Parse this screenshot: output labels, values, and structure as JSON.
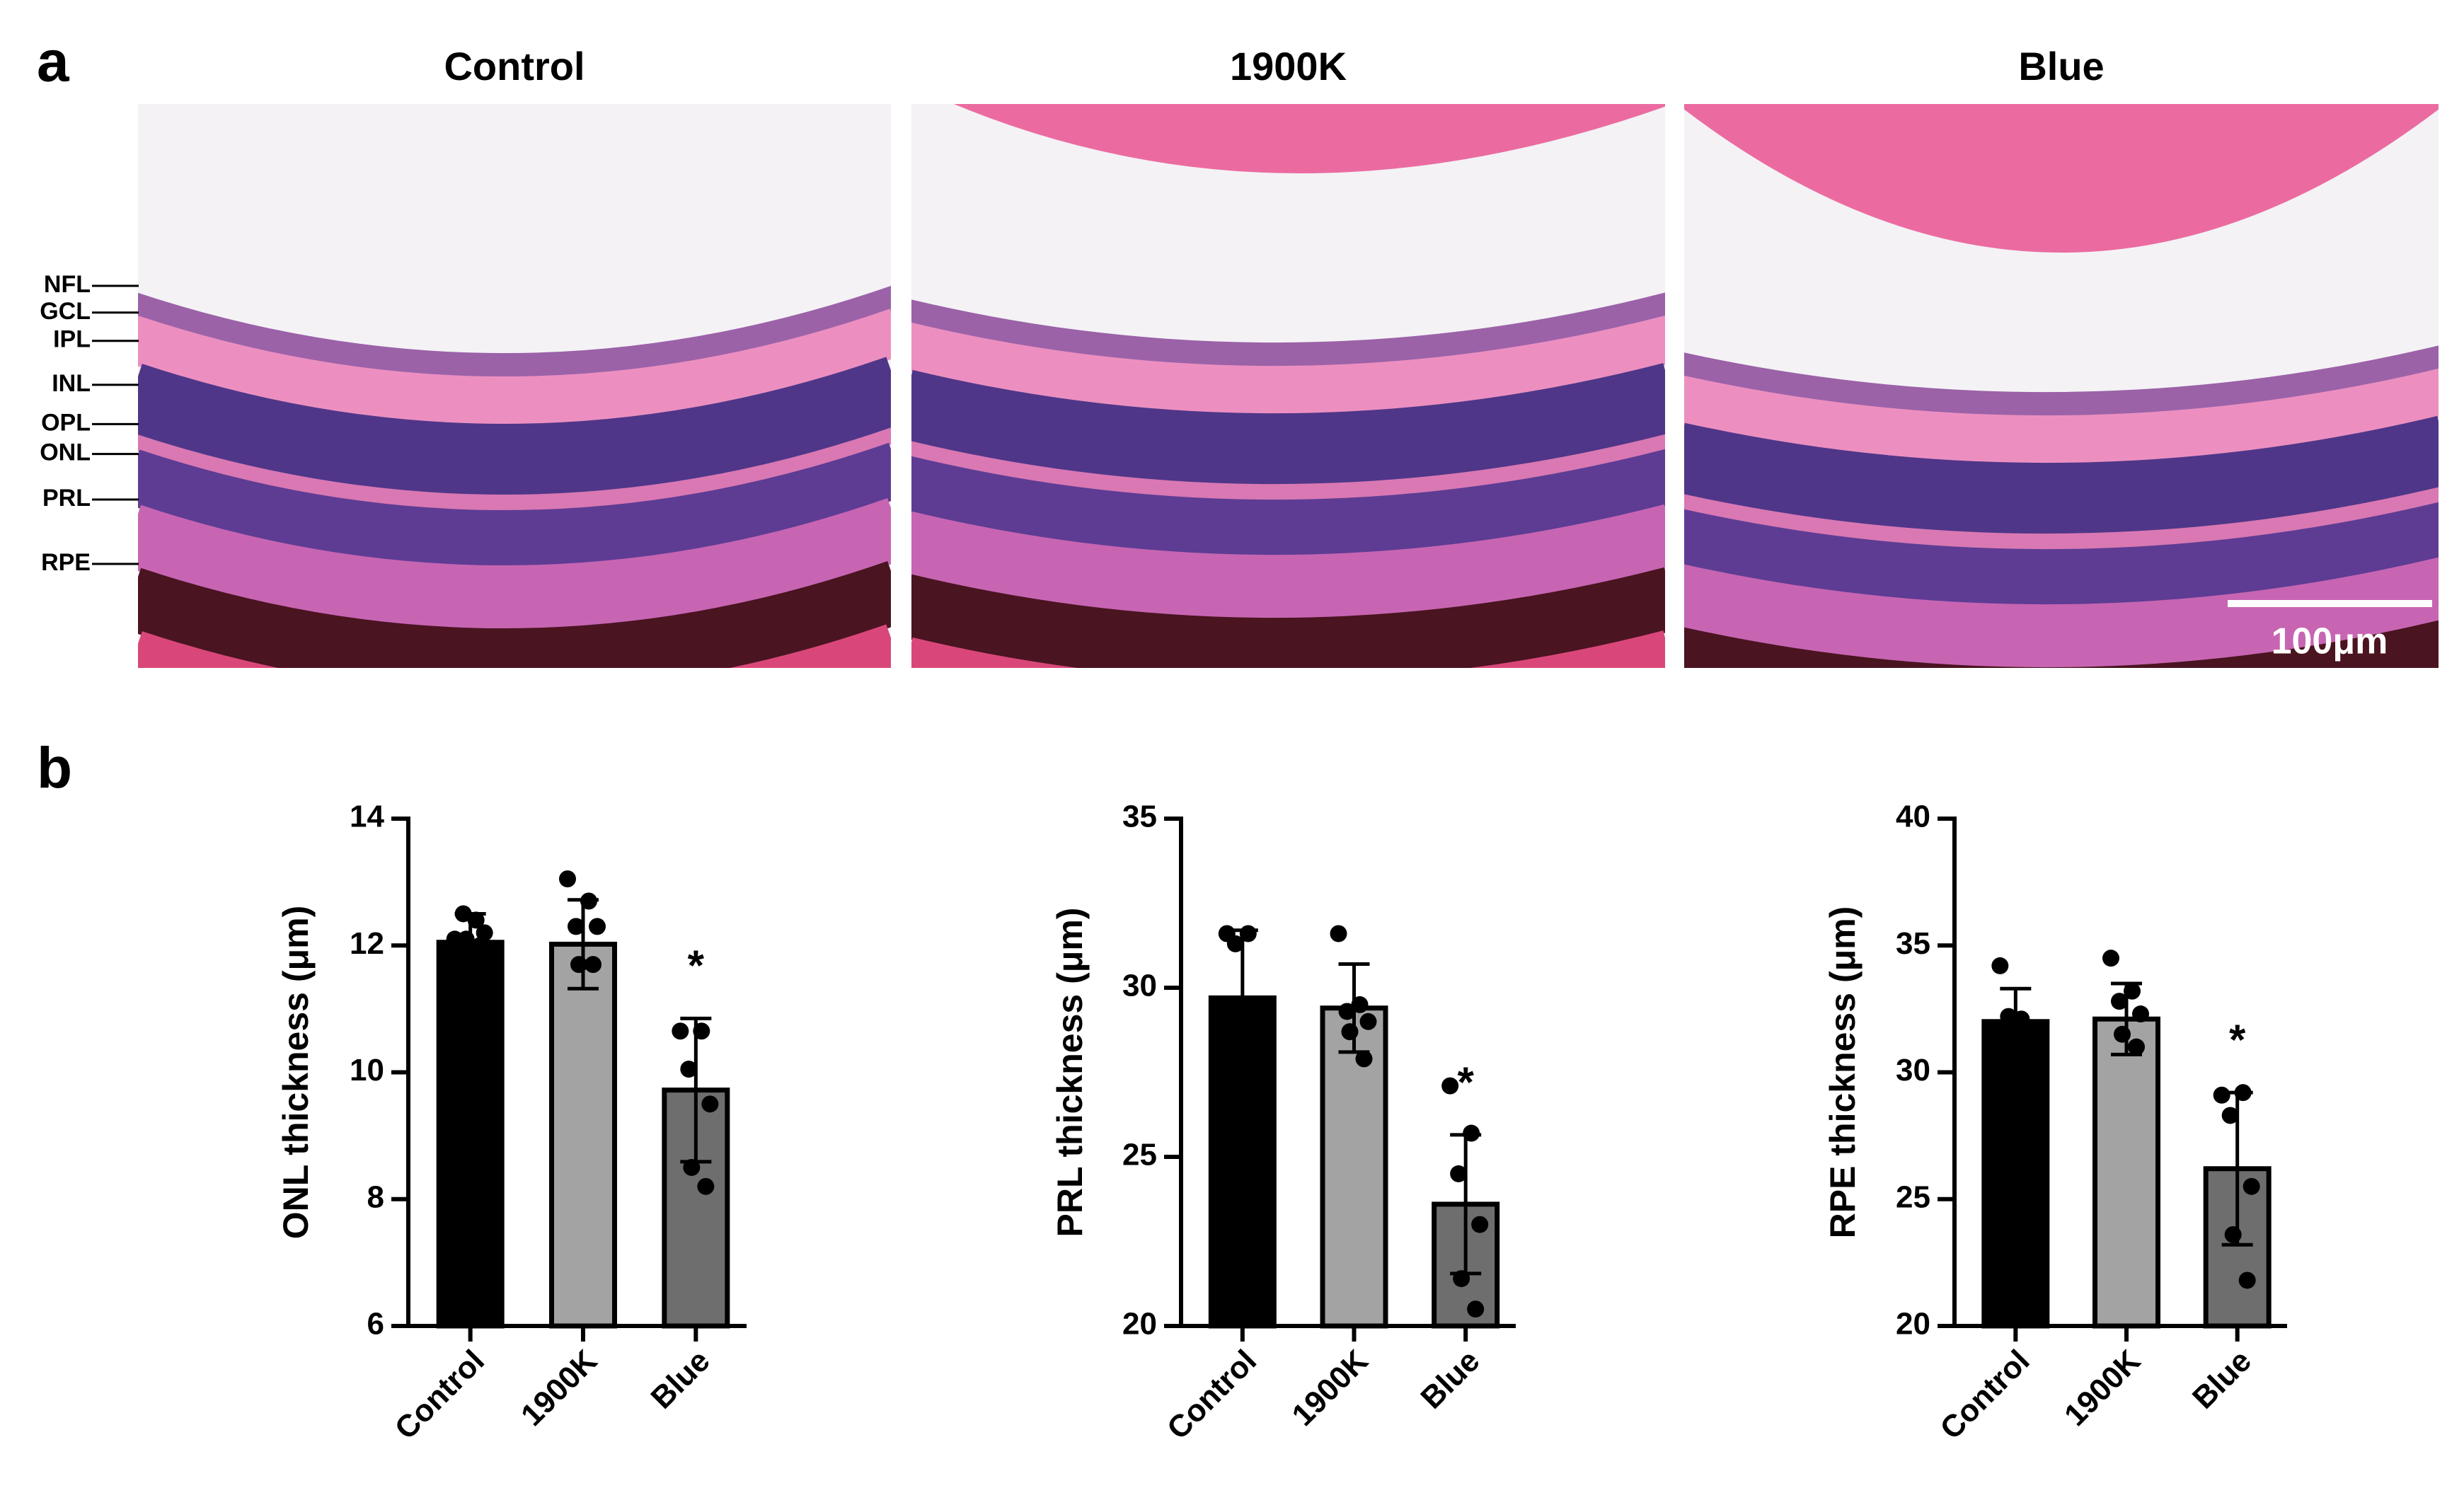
{
  "panel_labels": [
    "a",
    "b"
  ],
  "panel_a": {
    "titles": [
      "Control",
      "1900K",
      "Blue"
    ],
    "layers": [
      "NFL",
      "GCL",
      "IPL",
      "INL",
      "OPL",
      "ONL",
      "PRL",
      "RPE"
    ],
    "scale_bar": "100μm"
  },
  "chart_data": [
    {
      "type": "bar",
      "ylabel": "ONL thickness (μm)",
      "categories": [
        "Control",
        "1900K",
        "Blue"
      ],
      "values": [
        12.05,
        12.02,
        9.72
      ],
      "errors": [
        0.45,
        0.7,
        1.13
      ],
      "colors": [
        "#000000",
        "#a3a3a3",
        "#6e6e6e"
      ],
      "points": [
        [
          12.1,
          12.4,
          12.5,
          12.2,
          12.1,
          12.0
        ],
        [
          13.05,
          12.7,
          12.3,
          12.3,
          11.7,
          11.7
        ],
        [
          10.65,
          10.65,
          10.05,
          9.5,
          8.5,
          8.2
        ]
      ],
      "significance_labels": [
        null,
        null,
        "*"
      ],
      "ylim": [
        6,
        14
      ],
      "yticks": [
        6,
        8,
        10,
        12,
        14
      ]
    },
    {
      "type": "bar",
      "ylabel": "PRL thickness (μm)",
      "categories": [
        "Control",
        "1900K",
        "Blue"
      ],
      "values": [
        29.7,
        29.4,
        23.6
      ],
      "errors": [
        2.0,
        1.3,
        2.05
      ],
      "colors": [
        "#000000",
        "#a3a3a3",
        "#6e6e6e"
      ],
      "points": [
        [
          31.6,
          31.6,
          31.3
        ],
        [
          31.6,
          29.5,
          29.3,
          29.0,
          28.7,
          27.9
        ],
        [
          27.1,
          25.7,
          24.5,
          23.0,
          21.4,
          20.5
        ]
      ],
      "significance_labels": [
        null,
        null,
        "*"
      ],
      "ylim": [
        20,
        35
      ],
      "yticks": [
        20,
        25,
        30,
        35
      ]
    },
    {
      "type": "bar",
      "ylabel": "RPE thickness (μm)",
      "categories": [
        "Control",
        "1900K",
        "Blue"
      ],
      "values": [
        32.0,
        32.1,
        26.2
      ],
      "errors": [
        1.3,
        1.4,
        3.0
      ],
      "colors": [
        "#000000",
        "#a3a3a3",
        "#6e6e6e"
      ],
      "points": [
        [
          34.2,
          32.1,
          32.2
        ],
        [
          34.5,
          33.2,
          32.8,
          32.3,
          31.5,
          31.0
        ],
        [
          29.1,
          29.2,
          28.3,
          25.5,
          23.6,
          21.8
        ]
      ],
      "significance_labels": [
        null,
        null,
        "*"
      ],
      "ylim": [
        20,
        40
      ],
      "yticks": [
        20,
        25,
        30,
        35,
        40
      ]
    }
  ]
}
